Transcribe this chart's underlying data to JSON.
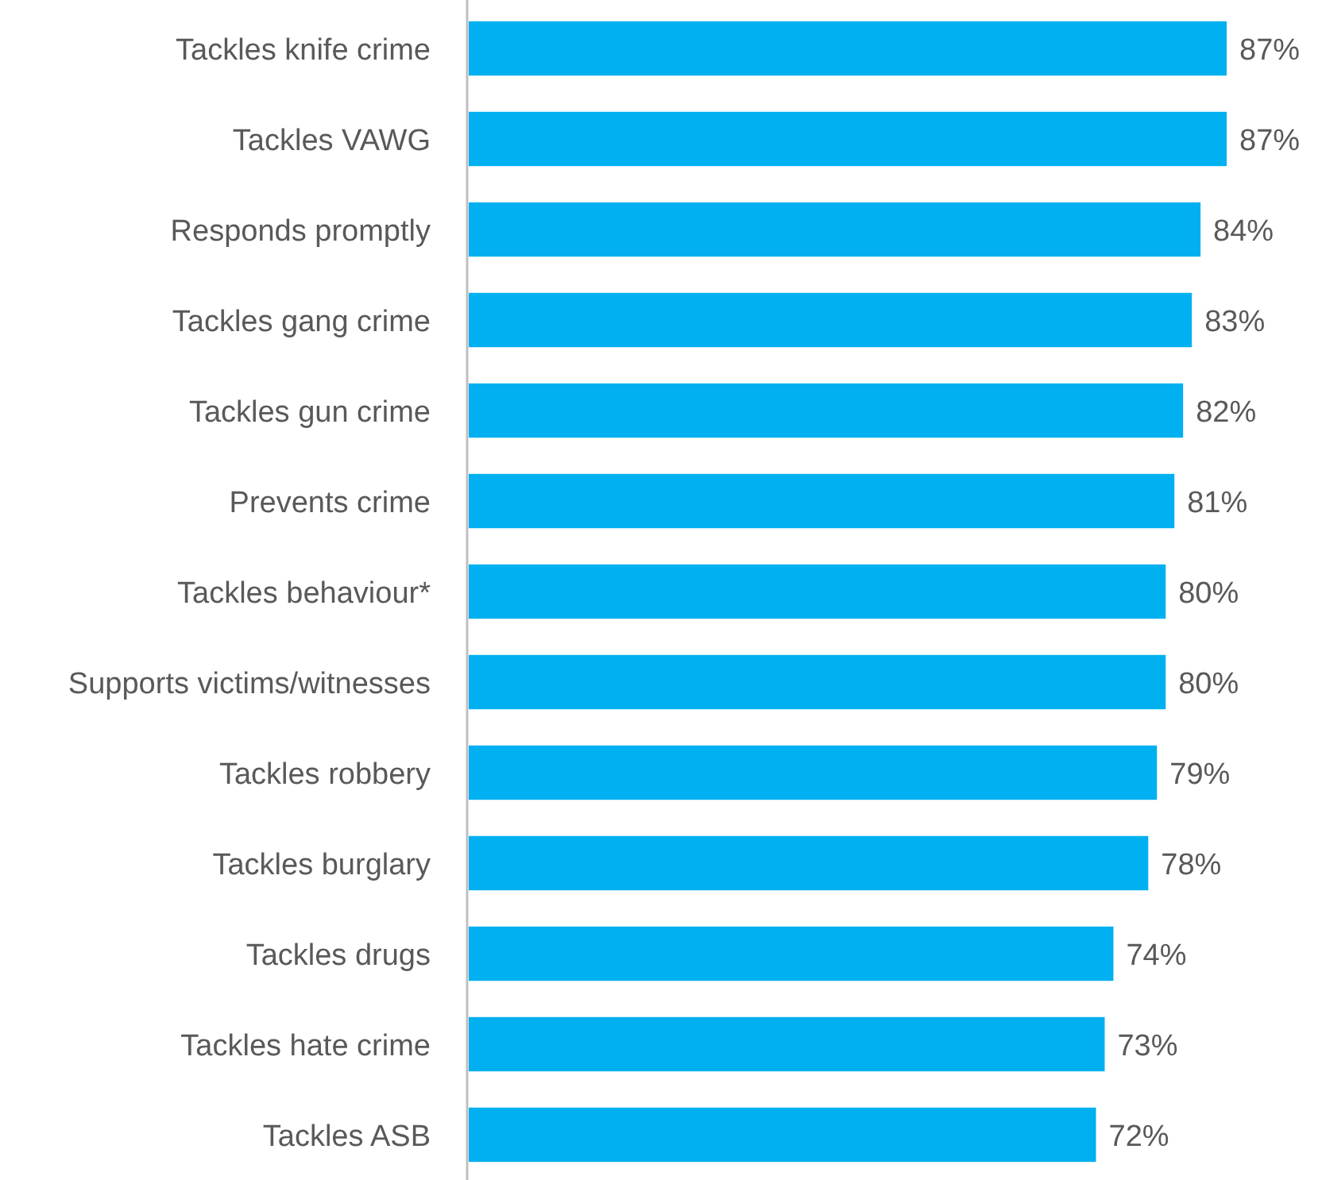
{
  "chart_data": {
    "type": "bar",
    "orientation": "horizontal",
    "color": "#00b0f0",
    "categories": [
      "Tackles knife crime",
      "Tackles VAWG",
      "Responds promptly",
      "Tackles gang crime",
      "Tackles gun crime",
      "Prevents crime",
      "Tackles behaviour*",
      "Supports victims/witnesses",
      "Tackles robbery",
      "Tackles burglary",
      "Tackles drugs",
      "Tackles hate crime",
      "Tackles ASB"
    ],
    "values": [
      87,
      87,
      84,
      83,
      82,
      81,
      80,
      80,
      79,
      78,
      74,
      73,
      72
    ],
    "value_labels": [
      "87%",
      "87%",
      "84%",
      "83%",
      "82%",
      "81%",
      "80%",
      "80%",
      "79%",
      "78%",
      "74%",
      "73%",
      "72%"
    ]
  }
}
